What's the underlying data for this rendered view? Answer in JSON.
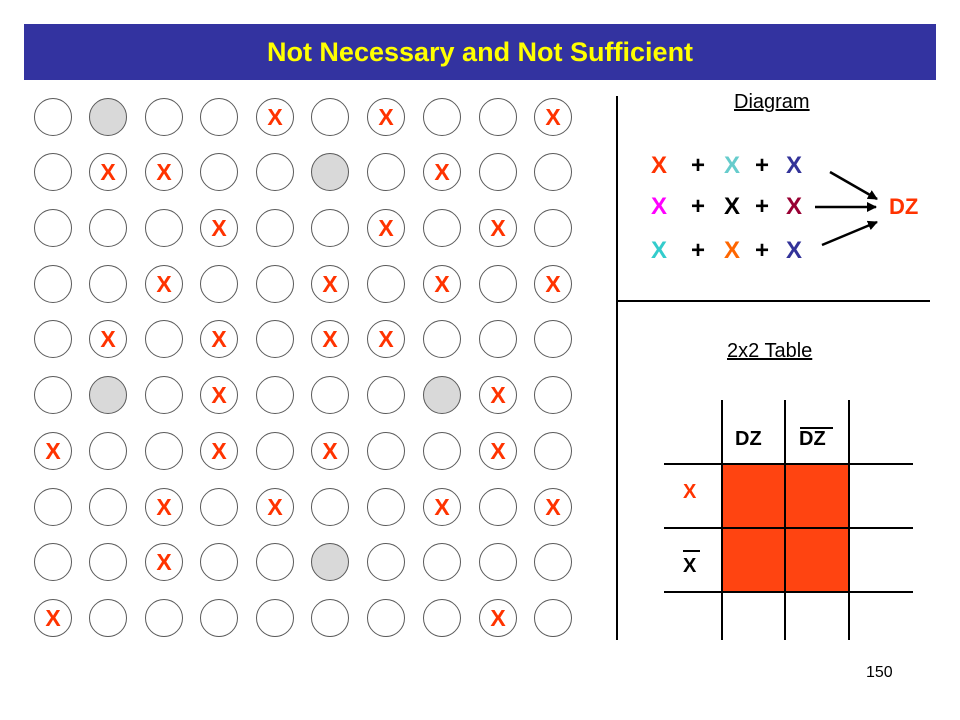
{
  "title": "Not Necessary and Not Sufficient",
  "grid": {
    "rows": [
      {
        "shaded": [
          1
        ],
        "x": [
          4,
          6,
          9
        ]
      },
      {
        "shaded": [
          5
        ],
        "x": [
          1,
          2,
          7
        ]
      },
      {
        "shaded": [],
        "x": [
          3,
          6,
          8
        ]
      },
      {
        "shaded": [],
        "x": [
          2,
          5,
          7,
          9
        ]
      },
      {
        "shaded": [],
        "x": [
          1,
          3,
          5,
          6
        ]
      },
      {
        "shaded": [
          1,
          7
        ],
        "x": [
          3,
          8
        ]
      },
      {
        "shaded": [],
        "x": [
          0,
          3,
          5,
          8
        ]
      },
      {
        "shaded": [],
        "x": [
          2,
          4,
          7,
          9
        ]
      },
      {
        "shaded": [
          5
        ],
        "x": [
          2
        ]
      },
      {
        "shaded": [],
        "x": [
          0,
          8
        ]
      }
    ],
    "x_label": "X",
    "x_color": "#ff3300"
  },
  "diagram": {
    "title": "Diagram",
    "outcome": "DZ",
    "outcome_color": "#ff3300",
    "plus": "+",
    "rows": [
      [
        {
          "text": "X",
          "color": "#ff3300"
        },
        {
          "text": "X",
          "color": "#66cccc"
        },
        {
          "text": "X",
          "color": "#333399"
        }
      ],
      [
        {
          "text": "X",
          "color": "#ff00ff"
        },
        {
          "text": "X",
          "color": "#000000"
        },
        {
          "text": "X",
          "color": "#990033"
        }
      ],
      [
        {
          "text": "X",
          "color": "#33cccc"
        },
        {
          "text": "X",
          "color": "#ff6600"
        },
        {
          "text": "X",
          "color": "#333399"
        }
      ]
    ]
  },
  "table": {
    "title": "2x2 Table",
    "col_headers": [
      "DZ",
      "DZ"
    ],
    "row_headers": [
      "X",
      "X"
    ],
    "row1_label_color": "#ff3300",
    "fill_color": "#ff4411"
  },
  "page_number": "150"
}
